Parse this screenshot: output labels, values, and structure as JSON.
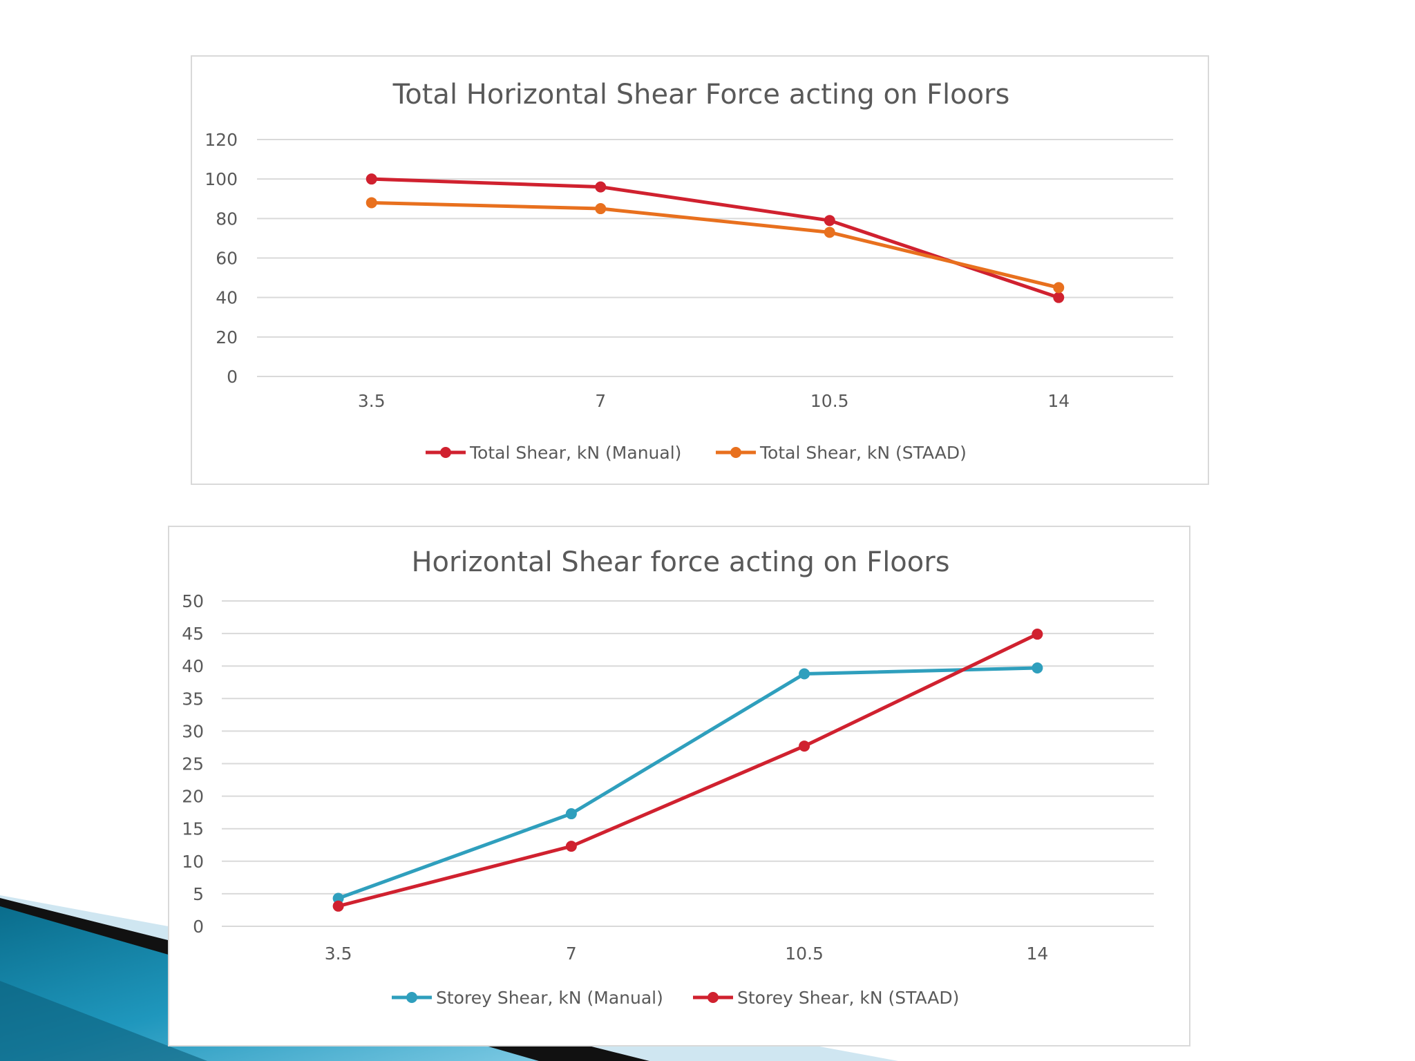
{
  "colors": {
    "red": "#d0212f",
    "orange": "#e8701e",
    "teal": "#2f9fbd",
    "grid": "#d9d9d9",
    "text": "#595959"
  },
  "chart_data": [
    {
      "type": "line",
      "title": "Total Horizontal Shear Force acting on Floors",
      "categories": [
        "3.5",
        "7",
        "10.5",
        "14"
      ],
      "y_ticks": [
        "0",
        "20",
        "40",
        "60",
        "80",
        "100",
        "120"
      ],
      "ylim": [
        0,
        120
      ],
      "grid": true,
      "legend_position": "bottom",
      "series": [
        {
          "name": "Total Shear, kN (Manual)",
          "color": "#d0212f",
          "values": [
            100,
            96,
            79,
            40
          ]
        },
        {
          "name": "Total Shear, kN (STAAD)",
          "color": "#e8701e",
          "values": [
            88,
            85,
            73,
            45
          ]
        }
      ]
    },
    {
      "type": "line",
      "title": "Horizontal Shear force acting on Floors",
      "categories": [
        "3.5",
        "7",
        "10.5",
        "14"
      ],
      "y_ticks": [
        "0",
        "5",
        "10",
        "15",
        "20",
        "25",
        "30",
        "35",
        "40",
        "45",
        "50"
      ],
      "ylim": [
        0,
        50
      ],
      "grid": true,
      "legend_position": "bottom",
      "series": [
        {
          "name": "Storey Shear, kN (Manual)",
          "color": "#2f9fbd",
          "values": [
            4.3,
            17.3,
            38.8,
            39.7
          ]
        },
        {
          "name": "Storey Shear, kN (STAAD)",
          "color": "#d0212f",
          "values": [
            3.1,
            12.3,
            27.7,
            44.9
          ]
        }
      ]
    }
  ]
}
